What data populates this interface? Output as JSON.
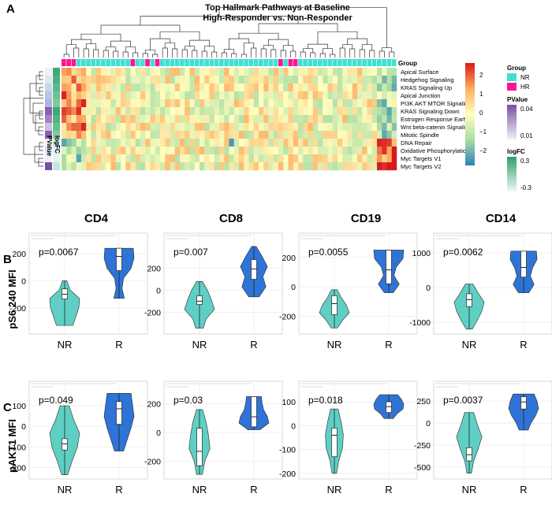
{
  "panel_a": {
    "letter": "A",
    "title": "Top Hallmark Pathways at Baseline",
    "subtitle": "High-Responder vs. Non-Responder",
    "group_label": "Group",
    "row_ann_labels": [
      "PValue",
      "logFC"
    ],
    "legend": {
      "group_title": "Group",
      "groups": [
        {
          "label": "NR",
          "color": "#40e0d0"
        },
        {
          "label": "HR",
          "color": "#ff1493"
        }
      ],
      "pvalue_title": "PValue",
      "pvalue_ticks": [
        "0.04",
        "0.01"
      ],
      "logfc_title": "logFC",
      "logfc_ticks": [
        "0.3",
        "-0.3"
      ],
      "scale_ticks": [
        "2",
        "1",
        "0",
        "−1",
        "−2"
      ]
    }
  },
  "chart_data": [
    {
      "type": "heatmap",
      "title": "Top Hallmark Pathways at Baseline",
      "subtitle": "High-Responder vs. Non-Responder",
      "rows": [
        "Apical Surface",
        "Hedgehog Signaling",
        "KRAS Signaling Up",
        "Apical Junction",
        "PI3K AKT MTOR Signaling",
        "KRAS Signaling Down",
        "Estrogen Response Early",
        "Wnt beta-catenin Signaling",
        "Mitotic Spindle",
        "DNA Repair",
        "Oxidative Phosphorylation",
        "Myc Targets V1",
        "Myc Targets V2"
      ],
      "column_groups": [
        "HR",
        "HR",
        "HR",
        "NR",
        "NR",
        "NR",
        "NR",
        "NR",
        "NR",
        "NR",
        "NR",
        "NR",
        "NR",
        "NR",
        "HR",
        "NR",
        "NR",
        "HR",
        "NR",
        "HR",
        "NR",
        "NR",
        "NR",
        "NR",
        "NR",
        "NR",
        "NR",
        "NR",
        "NR",
        "NR",
        "NR",
        "NR",
        "NR",
        "NR",
        "NR",
        "NR",
        "NR",
        "NR",
        "NR",
        "NR",
        "NR",
        "NR",
        "NR",
        "NR",
        "HR",
        "NR",
        "HR",
        "HR",
        "NR",
        "NR",
        "NR",
        "NR",
        "NR",
        "NR",
        "NR",
        "NR",
        "NR",
        "NR",
        "NR",
        "NR",
        "NR",
        "NR",
        "NR",
        "NR",
        "NR",
        "NR",
        "NR",
        "NR"
      ],
      "color_scale": {
        "min": -2.5,
        "max": 2.5
      }
    },
    {
      "type": "violin",
      "ylabel": "pS6 240 MFI",
      "row_letter": "B",
      "panels": [
        {
          "title": "CD4",
          "pvalue": "p=0.0067",
          "categories": [
            "NR",
            "R"
          ],
          "yticks": [
            -200,
            0,
            200
          ],
          "ylim": [
            -370,
            270
          ],
          "series": [
            {
              "name": "NR",
              "color": "#5fcfc4",
              "min": -330,
              "q1": -135,
              "median": -100,
              "q3": -60,
              "max": 0
            },
            {
              "name": "R",
              "color": "#2e74d6",
              "min": -130,
              "q1": 75,
              "median": 180,
              "q3": 240,
              "max": 240
            }
          ]
        },
        {
          "title": "CD8",
          "pvalue": "p=0.007",
          "categories": [
            "NR",
            "R"
          ],
          "yticks": [
            -200,
            0,
            200
          ],
          "ylim": [
            -370,
            420
          ],
          "series": [
            {
              "name": "NR",
              "color": "#5fcfc4",
              "min": -345,
              "q1": -130,
              "median": -100,
              "q3": -50,
              "max": 80
            },
            {
              "name": "R",
              "color": "#2e74d6",
              "min": -60,
              "q1": 100,
              "median": 195,
              "q3": 280,
              "max": 400
            }
          ]
        },
        {
          "title": "CD19",
          "pvalue": "p=0.0055",
          "categories": [
            "NR",
            "R"
          ],
          "yticks": [
            -200,
            0,
            200
          ],
          "ylim": [
            -300,
            290
          ],
          "series": [
            {
              "name": "NR",
              "color": "#5fcfc4",
              "min": -280,
              "q1": -190,
              "median": -115,
              "q3": -60,
              "max": -20
            },
            {
              "name": "R",
              "color": "#2e74d6",
              "min": -40,
              "q1": 20,
              "median": 115,
              "q3": 250,
              "max": 250
            }
          ]
        },
        {
          "title": "CD14",
          "pvalue": "p=0.0062",
          "categories": [
            "NR",
            "R"
          ],
          "yticks": [
            -1000,
            0,
            1000
          ],
          "ylim": [
            -1250,
            1250
          ],
          "series": [
            {
              "name": "NR",
              "color": "#5fcfc4",
              "min": -1200,
              "q1": -550,
              "median": -350,
              "q3": -180,
              "max": 100
            },
            {
              "name": "R",
              "color": "#2e74d6",
              "min": -150,
              "q1": 300,
              "median": 580,
              "q3": 1050,
              "max": 1050
            }
          ]
        }
      ]
    },
    {
      "type": "violin",
      "ylabel": "pAKT1 MFI",
      "row_letter": "C",
      "panels": [
        {
          "title": "",
          "pvalue": "p=0.049",
          "categories": [
            "NR",
            "R"
          ],
          "yticks": [
            -200,
            -100,
            0,
            100
          ],
          "ylim": [
            -240,
            165
          ],
          "series": [
            {
              "name": "NR",
              "color": "#5fcfc4",
              "min": -235,
              "q1": -115,
              "median": -85,
              "q3": -60,
              "max": 100
            },
            {
              "name": "R",
              "color": "#2e74d6",
              "min": -120,
              "q1": 10,
              "median": 85,
              "q3": 120,
              "max": 160
            }
          ]
        },
        {
          "title": "",
          "pvalue": "p=0.03",
          "categories": [
            "NR",
            "R"
          ],
          "yticks": [
            -200,
            0,
            200
          ],
          "ylim": [
            -300,
            280
          ],
          "series": [
            {
              "name": "NR",
              "color": "#5fcfc4",
              "min": -290,
              "q1": -230,
              "median": -130,
              "q3": 30,
              "max": 160
            },
            {
              "name": "R",
              "color": "#2e74d6",
              "min": 20,
              "q1": 40,
              "median": 110,
              "q3": 250,
              "max": 250
            }
          ]
        },
        {
          "title": "",
          "pvalue": "p=0.018",
          "categories": [
            "NR",
            "R"
          ],
          "yticks": [
            -200,
            -100,
            0,
            100
          ],
          "ylim": [
            -210,
            140
          ],
          "series": [
            {
              "name": "NR",
              "color": "#5fcfc4",
              "min": -200,
              "q1": -130,
              "median": -40,
              "q3": -10,
              "max": 70
            },
            {
              "name": "R",
              "color": "#2e74d6",
              "min": 30,
              "q1": 55,
              "median": 80,
              "q3": 100,
              "max": 130
            }
          ]
        },
        {
          "title": "",
          "pvalue": "p=0.0037",
          "categories": [
            "NR",
            "R"
          ],
          "yticks": [
            -500,
            -250,
            0,
            250
          ],
          "ylim": [
            -600,
            350
          ],
          "series": [
            {
              "name": "NR",
              "color": "#5fcfc4",
              "min": -570,
              "q1": -430,
              "median": -360,
              "q3": -280,
              "max": 120
            },
            {
              "name": "R",
              "color": "#2e74d6",
              "min": -80,
              "q1": 160,
              "median": 240,
              "q3": 300,
              "max": 330
            }
          ]
        }
      ]
    }
  ]
}
